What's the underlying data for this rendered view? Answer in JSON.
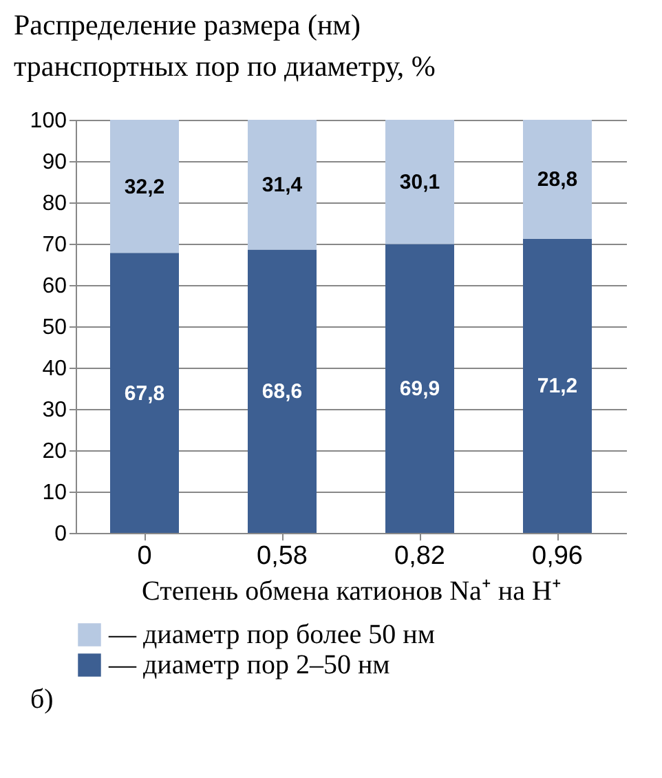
{
  "chart_data": {
    "type": "bar",
    "title": "Распределение размера (нм)\nтранспортных пор по диаметру, %",
    "xlabel": "Степень обмена катионов Na⁺ на H⁺",
    "categories": [
      "0",
      "0,58",
      "0,82",
      "0,96"
    ],
    "series": [
      {
        "name": "— диаметр пор 2–50 нм",
        "color": "#3d5f92",
        "values": [
          67.8,
          68.6,
          69.9,
          71.2
        ],
        "value_labels": [
          "67,8",
          "68,6",
          "69,9",
          "71,2"
        ]
      },
      {
        "name": "— диаметр пор более 50 нм",
        "color": "#b7c9e2",
        "values": [
          32.2,
          31.4,
          30.1,
          28.8
        ],
        "value_labels": [
          "32,2",
          "31,4",
          "30,1",
          "28,8"
        ]
      }
    ],
    "stacked": true,
    "ylim": [
      0,
      100
    ],
    "yticks": [
      0,
      10,
      20,
      30,
      40,
      50,
      60,
      70,
      80,
      90,
      100
    ],
    "grid": "y",
    "legend": "bottom",
    "annotations": [
      "б)"
    ]
  }
}
